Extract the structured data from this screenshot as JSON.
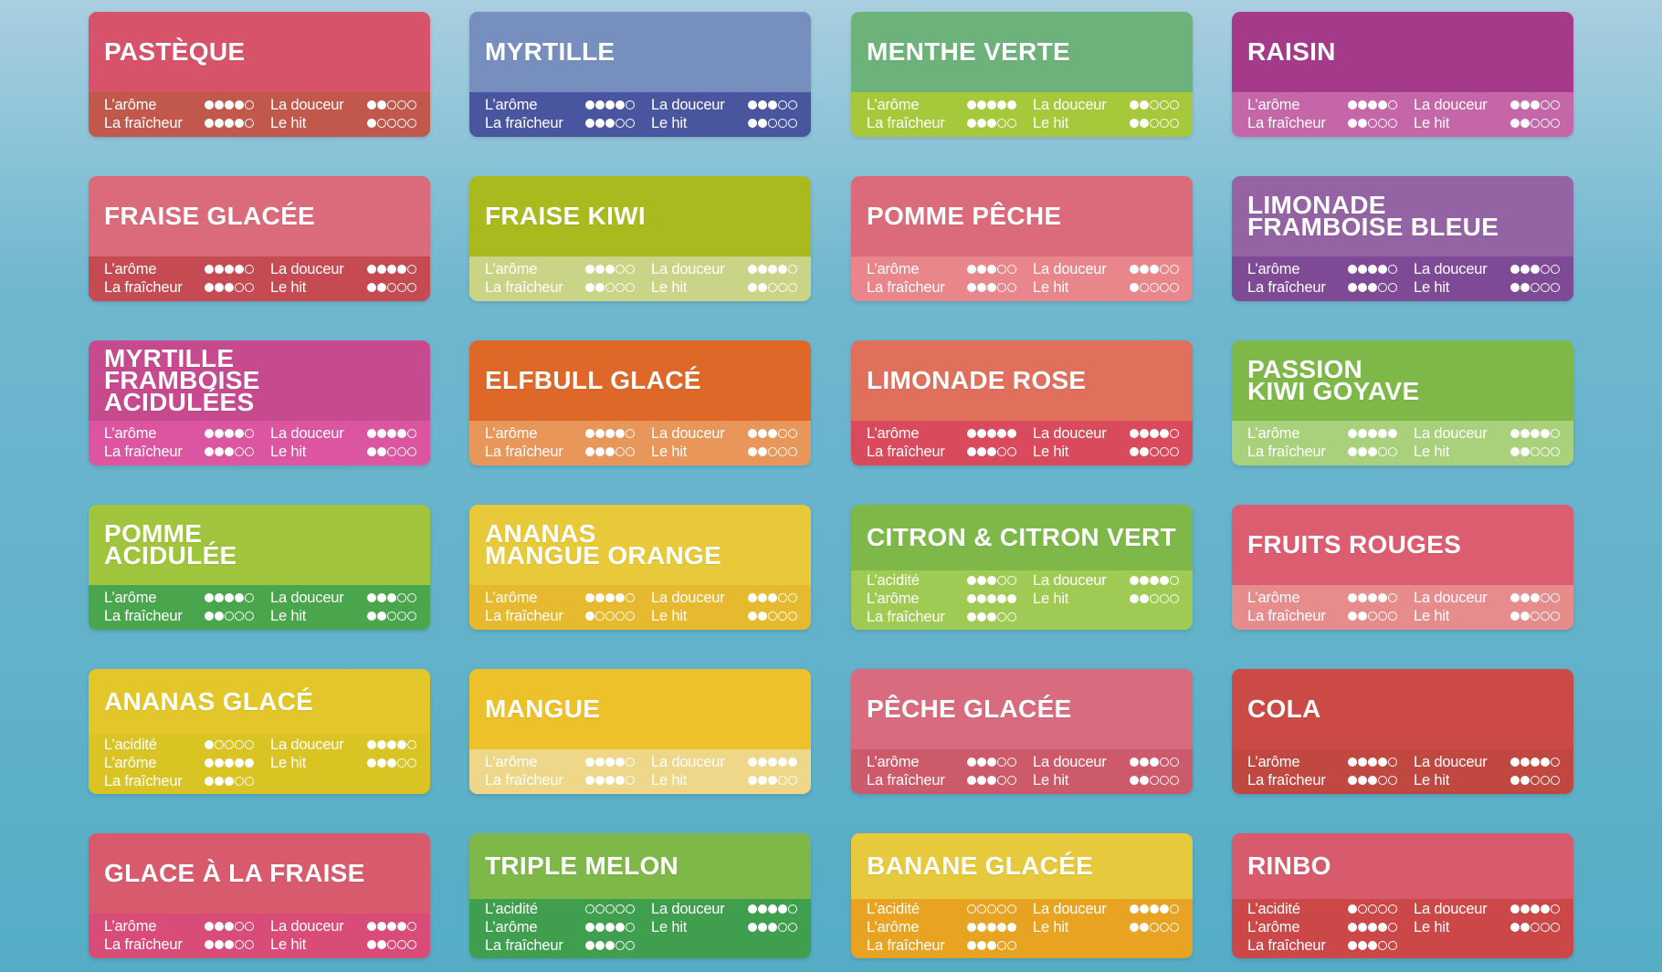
{
  "cards": [
    {
      "name": "PASTÈQUE",
      "head": "#d65369",
      "bar": "#c2584c",
      "left": [
        [
          "L’arôme",
          4
        ],
        [
          "La fraîcheur",
          4
        ]
      ],
      "right": [
        [
          "La douceur",
          2
        ],
        [
          "Le hit",
          1
        ]
      ]
    },
    {
      "name": "MYRTILLE",
      "head": "#768fbf",
      "bar": "#4a55a0",
      "left": [
        [
          "L’arôme",
          4
        ],
        [
          "La fraîcheur",
          3
        ]
      ],
      "right": [
        [
          "La douceur",
          3
        ],
        [
          "Le hit",
          2
        ]
      ]
    },
    {
      "name": "MENTHE VERTE",
      "head": "#6db27a",
      "bar": "#a6c93c",
      "left": [
        [
          "L’arôme",
          5
        ],
        [
          "La fraîcheur",
          3
        ]
      ],
      "right": [
        [
          "La douceur",
          2
        ],
        [
          "Le hit",
          2
        ]
      ]
    },
    {
      "name": "RAISIN",
      "head": "#a63a8a",
      "bar": "#c466a8",
      "left": [
        [
          "L’arôme",
          4
        ],
        [
          "La fraîcheur",
          2
        ]
      ],
      "right": [
        [
          "La douceur",
          3
        ],
        [
          "Le hit",
          2
        ]
      ]
    },
    {
      "name": "FRAISE GLACÉE",
      "head": "#db6b7b",
      "bar": "#c54a52",
      "left": [
        [
          "L’arôme",
          4
        ],
        [
          "La fraîcheur",
          3
        ]
      ],
      "right": [
        [
          "La douceur",
          4
        ],
        [
          "Le hit",
          2
        ]
      ]
    },
    {
      "name": "FRAISE KIWI",
      "head": "#a9b91e",
      "bar": "#c9d486",
      "left": [
        [
          "L’arôme",
          3
        ],
        [
          "La fraîcheur",
          2
        ]
      ],
      "right": [
        [
          "La douceur",
          4
        ],
        [
          "Le hit",
          2
        ]
      ]
    },
    {
      "name": "POMME PÊCHE",
      "head": "#db6b7b",
      "bar": "#e8868c",
      "left": [
        [
          "L’arôme",
          3
        ],
        [
          "La fraîcheur",
          3
        ]
      ],
      "right": [
        [
          "La douceur",
          3
        ],
        [
          "Le hit",
          1
        ]
      ]
    },
    {
      "name": "LIMONADE\nFRAMBOISE BLEUE",
      "head": "#9463a3",
      "bar": "#7e4a96",
      "left": [
        [
          "L’arôme",
          4
        ],
        [
          "La fraîcheur",
          3
        ]
      ],
      "right": [
        [
          "La douceur",
          3
        ],
        [
          "Le hit",
          2
        ]
      ]
    },
    {
      "name": "MYRTILLE\nFRAMBOISE ACIDULÉES",
      "head": "#c74a8f",
      "bar": "#dc55a0",
      "left": [
        [
          "L’arôme",
          4
        ],
        [
          "La fraîcheur",
          3
        ]
      ],
      "right": [
        [
          "La douceur",
          4
        ],
        [
          "Le hit",
          2
        ]
      ]
    },
    {
      "name": "ELFBULL GLACÉ",
      "head": "#de6828",
      "bar": "#e9965b",
      "left": [
        [
          "L’arôme",
          4
        ],
        [
          "La fraîcheur",
          3
        ]
      ],
      "right": [
        [
          "La douceur",
          3
        ],
        [
          "Le hit",
          2
        ]
      ]
    },
    {
      "name": "LIMONADE ROSE",
      "head": "#e0705c",
      "bar": "#d94a5c",
      "left": [
        [
          "L’arôme",
          5
        ],
        [
          "La fraîcheur",
          3
        ]
      ],
      "right": [
        [
          "La douceur",
          4
        ],
        [
          "Le hit",
          2
        ]
      ]
    },
    {
      "name": "PASSION\nKIWI GOYAVE",
      "head": "#7eb849",
      "bar": "#a9d07a",
      "left": [
        [
          "L’arôme",
          5
        ],
        [
          "La fraîcheur",
          3
        ]
      ],
      "right": [
        [
          "La douceur",
          4
        ],
        [
          "Le hit",
          2
        ]
      ]
    },
    {
      "name": "POMME\nACIDULÉE",
      "head": "#a0c43c",
      "bar": "#49a64c",
      "left": [
        [
          "L’arôme",
          4
        ],
        [
          "La fraîcheur",
          2
        ]
      ],
      "right": [
        [
          "La douceur",
          3
        ],
        [
          "Le hit",
          2
        ]
      ]
    },
    {
      "name": "ANANAS\nMANGUE ORANGE",
      "head": "#e7c93a",
      "bar": "#e6b92f",
      "left": [
        [
          "L’arôme",
          4
        ],
        [
          "La fraîcheur",
          1
        ]
      ],
      "right": [
        [
          "La douceur",
          3
        ],
        [
          "Le hit",
          2
        ]
      ]
    },
    {
      "name": "CITRON & CITRON VERT",
      "head": "#7eb849",
      "bar": "#9fcb55",
      "three": true,
      "left": [
        [
          "L’acidité",
          3
        ],
        [
          "L’arôme",
          5
        ],
        [
          "La fraîcheur",
          3
        ]
      ],
      "right": [
        [
          "La douceur",
          4
        ],
        [
          "Le hit",
          2
        ]
      ]
    },
    {
      "name": "FRUITS ROUGES",
      "head": "#dc5d70",
      "bar": "#e68c8c",
      "left": [
        [
          "L’arôme",
          4
        ],
        [
          "La fraîcheur",
          2
        ]
      ],
      "right": [
        [
          "La douceur",
          3
        ],
        [
          "Le hit",
          2
        ]
      ]
    },
    {
      "name": "ANANAS GLACÉ",
      "head": "#e3c72a",
      "bar": "#d9c424",
      "three": true,
      "left": [
        [
          "L’acidité",
          1
        ],
        [
          "L’arôme",
          5
        ],
        [
          "La fraîcheur",
          3
        ]
      ],
      "right": [
        [
          "La douceur",
          4
        ],
        [
          "Le hit",
          3
        ]
      ]
    },
    {
      "name": "MANGUE",
      "head": "#ecc12a",
      "bar": "#efd78a",
      "left": [
        [
          "L’arôme",
          4
        ],
        [
          "La fraîcheur",
          4
        ]
      ],
      "right": [
        [
          "La douceur",
          5
        ],
        [
          "Le hit",
          3
        ]
      ]
    },
    {
      "name": "PÊCHE GLACÉE",
      "head": "#d96b7e",
      "bar": "#cc5a6a",
      "left": [
        [
          "L’arôme",
          3
        ],
        [
          "La fraîcheur",
          3
        ]
      ],
      "right": [
        [
          "La douceur",
          3
        ],
        [
          "Le hit",
          2
        ]
      ]
    },
    {
      "name": "COLA",
      "head": "#cc4a45",
      "bar": "#c04840",
      "left": [
        [
          "L’arôme",
          4
        ],
        [
          "La fraîcheur",
          3
        ]
      ],
      "right": [
        [
          "La douceur",
          4
        ],
        [
          "Le hit",
          2
        ]
      ]
    },
    {
      "name": "GLACE À LA FRAISE",
      "head": "#d85a6d",
      "bar": "#d94c77",
      "left": [
        [
          "L’arôme",
          3
        ],
        [
          "La fraîcheur",
          3
        ]
      ],
      "right": [
        [
          "La douceur",
          4
        ],
        [
          "Le hit",
          2
        ]
      ]
    },
    {
      "name": "TRIPLE MELON",
      "head": "#7eb849",
      "bar": "#3f9f4e",
      "three": true,
      "left": [
        [
          "L’acidité",
          0
        ],
        [
          "L’arôme",
          4
        ],
        [
          "La fraîcheur",
          3
        ]
      ],
      "right": [
        [
          "La douceur",
          4
        ],
        [
          "Le hit",
          3
        ]
      ]
    },
    {
      "name": "BANANE GLACÉE",
      "head": "#e6c93c",
      "bar": "#e8a322",
      "three": true,
      "left": [
        [
          "L’acidité",
          0
        ],
        [
          "L’arôme",
          5
        ],
        [
          "La fraîcheur",
          3
        ]
      ],
      "right": [
        [
          "La douceur",
          4
        ],
        [
          "Le hit",
          2
        ]
      ]
    },
    {
      "name": "RINBO",
      "head": "#d85a6d",
      "bar": "#cb4748",
      "three": true,
      "left": [
        [
          "L’acidité",
          1
        ],
        [
          "L’arôme",
          4
        ],
        [
          "La fraîcheur",
          3
        ]
      ],
      "right": [
        [
          "La douceur",
          4
        ],
        [
          "Le hit",
          2
        ]
      ]
    }
  ]
}
